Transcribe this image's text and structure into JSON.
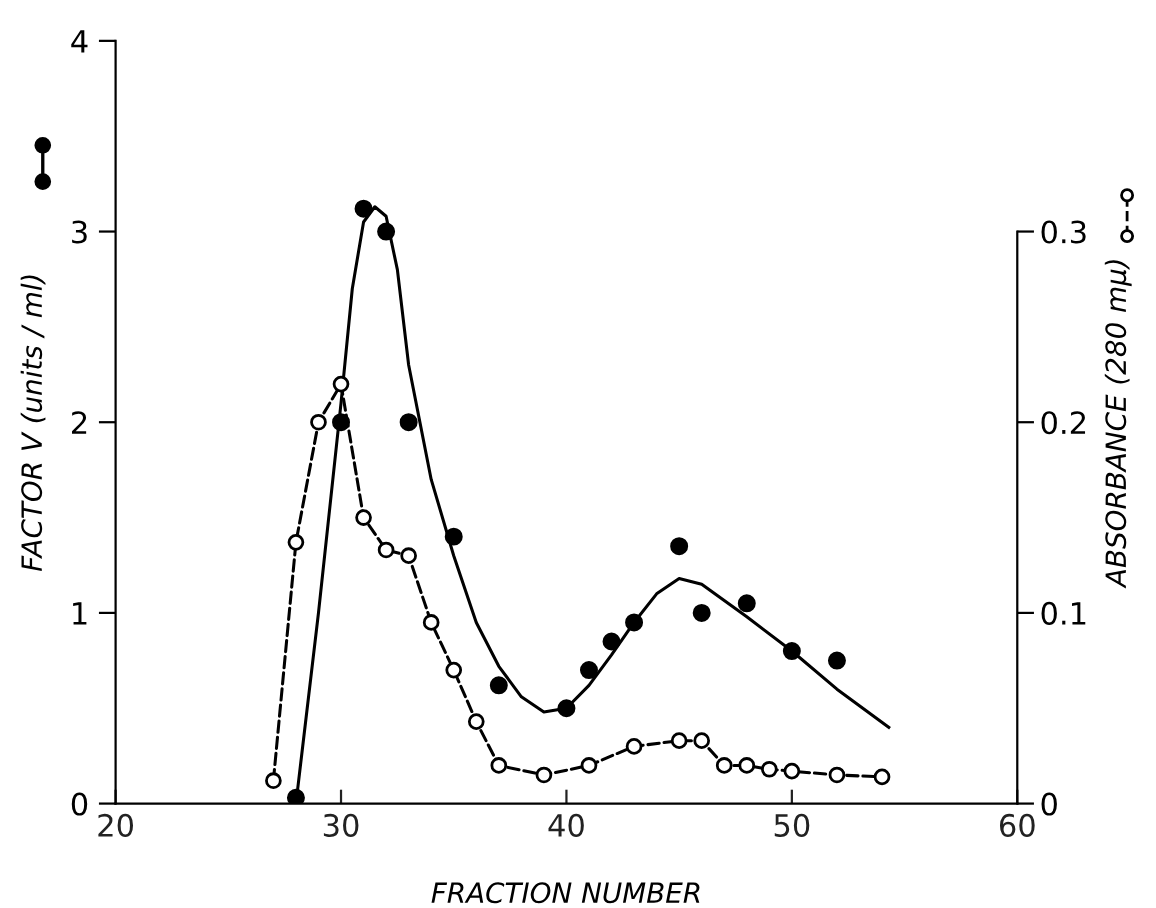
{
  "chart_data": {
    "type": "scatter",
    "xlabel": "FRACTION NUMBER",
    "ylabel": "FACTOR V (units / ml)",
    "y2label": "ABSORBANCE (280 mμ)",
    "xlim": [
      20,
      60
    ],
    "xticks": [
      20,
      30,
      40,
      50,
      60
    ],
    "ylim": [
      0,
      4
    ],
    "yticks": [
      0,
      1,
      2,
      3,
      4
    ],
    "y2lim": [
      0,
      0.4
    ],
    "y2ticks": [
      0,
      0.1,
      0.2,
      0.3
    ],
    "grid": false,
    "legend": false,
    "series": [
      {
        "color": "#000000",
        "marker": "circle",
        "x": [
          28,
          30,
          31,
          32,
          33,
          35,
          37,
          40,
          41,
          42,
          43,
          45,
          46,
          48,
          50,
          52
        ],
        "values": [
          0.03,
          2.0,
          3.12,
          3.0,
          2.0,
          1.4,
          0.62,
          0.5,
          0.7,
          0.85,
          0.95,
          1.35,
          1.0,
          1.05,
          0.8,
          0.75
        ]
      },
      {
        "type": "line",
        "color": "#000000",
        "line_style": "solid",
        "marker": "none",
        "x": [
          28,
          29,
          30,
          30.5,
          31,
          31.5,
          32,
          32.5,
          33,
          34,
          35,
          36,
          37,
          38,
          39,
          40,
          41,
          42,
          43,
          44,
          45,
          46,
          48,
          50,
          52,
          54.3
        ],
        "values": [
          0,
          1.0,
          2.1,
          2.7,
          3.05,
          3.13,
          3.08,
          2.8,
          2.3,
          1.7,
          1.3,
          0.95,
          0.72,
          0.56,
          0.48,
          0.5,
          0.62,
          0.78,
          0.95,
          1.1,
          1.18,
          1.15,
          0.98,
          0.8,
          0.6,
          0.4
        ]
      },
      {
        "type": "line",
        "axis": "y2",
        "color": "#000000",
        "line_style": "dashed",
        "marker": "circle",
        "x": [
          27,
          28,
          29,
          30,
          31,
          32,
          33,
          34,
          35,
          36,
          37,
          39,
          41,
          43,
          45,
          46,
          47,
          48,
          49,
          50,
          52,
          54
        ],
        "values": [
          0.012,
          0.137,
          0.2,
          0.22,
          0.15,
          0.133,
          0.13,
          0.095,
          0.07,
          0.043,
          0.02,
          0.015,
          0.02,
          0.03,
          0.033,
          0.033,
          0.02,
          0.02,
          0.018,
          0.017,
          0.015,
          0.014
        ]
      }
    ]
  }
}
